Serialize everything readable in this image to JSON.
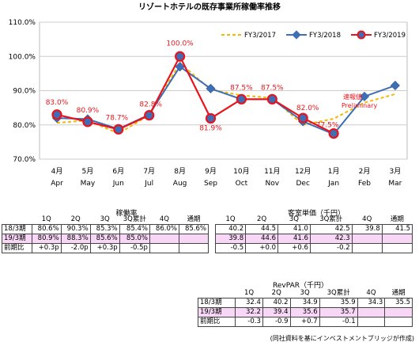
{
  "chart_data": {
    "type": "line",
    "title": "リゾートホテルの既存事業所稼働率推移",
    "categories_jp": [
      "4月",
      "5月",
      "6月",
      "7月",
      "8月",
      "9月",
      "10月",
      "11月",
      "12月",
      "1月",
      "2月",
      "3月"
    ],
    "categories_en": [
      "Apr",
      "May",
      "Jun",
      "Jul",
      "Aug",
      "Sep",
      "Oct",
      "Nov",
      "Dec",
      "Jan",
      "Feb",
      "Mar"
    ],
    "y_ticks": [
      "110.0%",
      "100.0%",
      "90.0%",
      "80.0%",
      "70.0%"
    ],
    "ylim": [
      70,
      110
    ],
    "grid": true,
    "legend_position": "top-right",
    "series": [
      {
        "name": "FY3/2017",
        "color": "#f5b800",
        "style": "dashed",
        "values": [
          80.6,
          81.3,
          77.5,
          82.8,
          98.1,
          90.3,
          88.6,
          87.9,
          80.0,
          81.8,
          86.5,
          89.0
        ]
      },
      {
        "name": "FY3/2018",
        "color": "#3d6fb6",
        "style": "solid",
        "values": [
          82.0,
          81.7,
          78.8,
          83.0,
          97.0,
          90.6,
          87.5,
          87.5,
          81.0,
          77.3,
          88.3,
          91.5
        ]
      },
      {
        "name": "FY3/2019",
        "color": "#e8141d",
        "style": "solid",
        "values": [
          83.0,
          80.9,
          78.7,
          82.8,
          100.0,
          81.9,
          87.5,
          87.5,
          82.0,
          77.5,
          null,
          null
        ]
      }
    ],
    "data_labels": [
      "83.0%",
      "80.9%",
      "78.7%",
      "82.8%",
      "100.0%",
      "81.9%",
      "87.5%",
      "87.5%",
      "82.0%",
      "77.5%"
    ],
    "annotation": {
      "jp": "速報値",
      "en": "Preliminary"
    }
  },
  "occ": {
    "title": "稼働率",
    "headers": [
      "",
      "1Q",
      "2Q",
      "3Q",
      "3Q累計",
      "4Q",
      "通期"
    ],
    "rows": [
      [
        "18/3期",
        "80.6%",
        "90.3%",
        "85.3%",
        "85.4%",
        "86.0%",
        "85.6%"
      ],
      [
        "19/3期",
        "80.9%",
        "88.3%",
        "85.6%",
        "85.0%",
        "",
        ""
      ],
      [
        "前期比",
        "+0.3p",
        "-2.0p",
        "+0.3p",
        "-0.5p",
        "",
        ""
      ]
    ]
  },
  "price": {
    "title": "客室単価（千円）",
    "headers": [
      "1Q",
      "2Q",
      "3Q",
      "3Q累計",
      "4Q",
      "通期"
    ],
    "rows": [
      [
        "40.2",
        "44.5",
        "41.0",
        "42.5",
        "39.8",
        "41.5"
      ],
      [
        "39.8",
        "44.6",
        "41.6",
        "42.3",
        "",
        ""
      ],
      [
        "-0.5",
        "+0.0",
        "+0.6",
        "-0.2",
        "",
        ""
      ]
    ]
  },
  "revpar": {
    "title": "RevPAR（千円）",
    "headers": [
      "",
      "1Q",
      "2Q",
      "3Q",
      "3Q累計",
      "4Q",
      "通期"
    ],
    "rows": [
      [
        "18/3期",
        "32.4",
        "40.2",
        "34.9",
        "35.9",
        "34.3",
        "35.5"
      ],
      [
        "19/3期",
        "32.2",
        "39.4",
        "35.6",
        "35.7",
        "",
        ""
      ],
      [
        "前期比",
        "-0.3",
        "-0.9",
        "+0.7",
        "-0.1",
        "",
        ""
      ]
    ]
  },
  "credit": "(同社資料を基にインベストメントブリッジが作成)"
}
